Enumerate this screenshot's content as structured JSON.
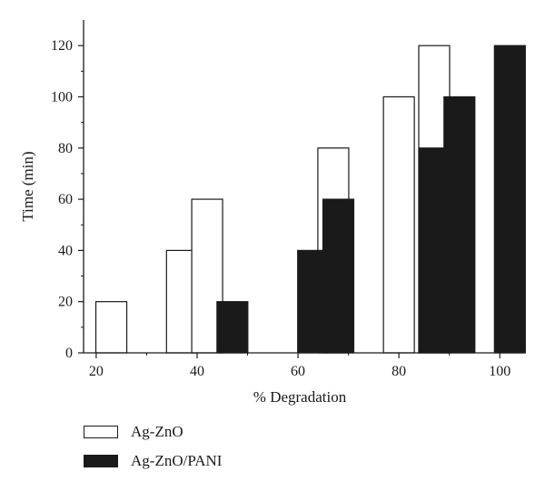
{
  "chart_data": {
    "type": "bar",
    "title": "",
    "xlabel": "% Degradation",
    "ylabel": "Time (min)",
    "xlim": [
      17.5,
      105
    ],
    "ylim": [
      0,
      130
    ],
    "xticks": [
      20,
      40,
      60,
      80,
      100
    ],
    "yticks": [
      0,
      20,
      40,
      60,
      80,
      100,
      120
    ],
    "series": [
      {
        "name": "Ag-ZnO",
        "color": "#ffffff",
        "points": [
          {
            "x": 23,
            "y": 20
          },
          {
            "x": 37,
            "y": 40
          },
          {
            "x": 42,
            "y": 60
          },
          {
            "x": 67,
            "y": 80
          },
          {
            "x": 80,
            "y": 100
          },
          {
            "x": 87,
            "y": 120
          }
        ]
      },
      {
        "name": "Ag-ZnO/PANI",
        "color": "#1a1a1a",
        "points": [
          {
            "x": 47,
            "y": 20
          },
          {
            "x": 63,
            "y": 40
          },
          {
            "x": 68,
            "y": 60
          },
          {
            "x": 87,
            "y": 80
          },
          {
            "x": 92,
            "y": 100
          },
          {
            "x": 102,
            "y": 120
          }
        ]
      }
    ],
    "legend_position": "bottom-left"
  }
}
